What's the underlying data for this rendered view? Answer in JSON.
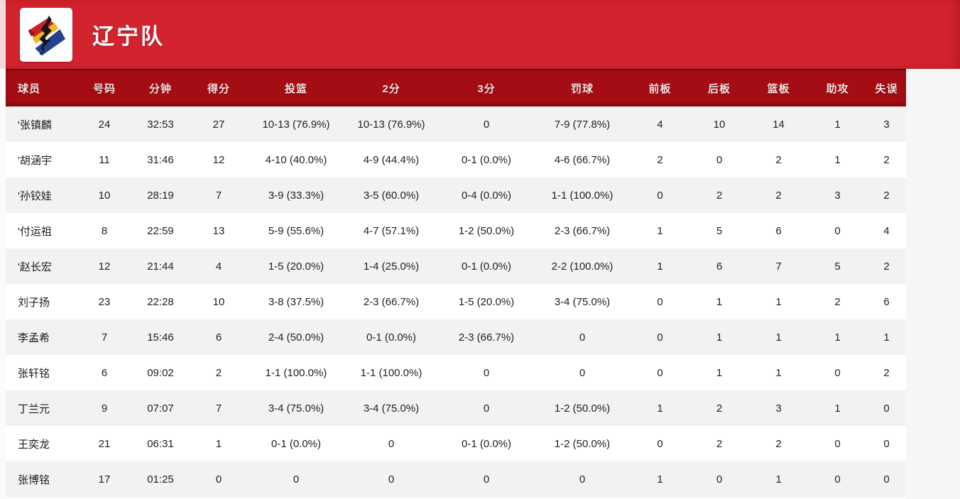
{
  "header": {
    "team_name": "辽宁队",
    "logo_name": "liaoning-flying-leopards-logo"
  },
  "colors": {
    "banner_red": "#d2232e",
    "header_bar_red": "#a50d14",
    "row_stripe": "#f2f2f2",
    "logo_red": "#cc2128",
    "logo_yellow": "#f2b722",
    "logo_blue": "#24418f",
    "logo_black": "#161616"
  },
  "table": {
    "columns": [
      "球员",
      "号码",
      "分钟",
      "得分",
      "投篮",
      "2分",
      "3分",
      "罚球",
      "前板",
      "后板",
      "篮板",
      "助攻",
      "失误"
    ],
    "starter_mark": "'",
    "rows": [
      [
        "'张镇麟",
        "24",
        "32:53",
        "27",
        "10-13 (76.9%)",
        "10-13 (76.9%)",
        "0",
        "7-9 (77.8%)",
        "4",
        "10",
        "14",
        "1",
        "3"
      ],
      [
        "'胡涵宇",
        "11",
        "31:46",
        "12",
        "4-10 (40.0%)",
        "4-9 (44.4%)",
        "0-1 (0.0%)",
        "4-6 (66.7%)",
        "2",
        "0",
        "2",
        "1",
        "2"
      ],
      [
        "'孙铰娃",
        "10",
        "28:19",
        "7",
        "3-9 (33.3%)",
        "3-5 (60.0%)",
        "0-4 (0.0%)",
        "1-1 (100.0%)",
        "0",
        "2",
        "2",
        "3",
        "2"
      ],
      [
        "'付运祖",
        "8",
        "22:59",
        "13",
        "5-9 (55.6%)",
        "4-7 (57.1%)",
        "1-2 (50.0%)",
        "2-3 (66.7%)",
        "1",
        "5",
        "6",
        "0",
        "4"
      ],
      [
        "'赵长宏",
        "12",
        "21:44",
        "4",
        "1-5 (20.0%)",
        "1-4 (25.0%)",
        "0-1 (0.0%)",
        "2-2 (100.0%)",
        "1",
        "6",
        "7",
        "5",
        "2"
      ],
      [
        "刘子扬",
        "23",
        "22:28",
        "10",
        "3-8 (37.5%)",
        "2-3 (66.7%)",
        "1-5 (20.0%)",
        "3-4 (75.0%)",
        "0",
        "1",
        "1",
        "2",
        "6"
      ],
      [
        "李孟希",
        "7",
        "15:46",
        "6",
        "2-4 (50.0%)",
        "0-1 (0.0%)",
        "2-3 (66.7%)",
        "0",
        "0",
        "1",
        "1",
        "1",
        "1"
      ],
      [
        "张轩铭",
        "6",
        "09:02",
        "2",
        "1-1 (100.0%)",
        "1-1 (100.0%)",
        "0",
        "0",
        "0",
        "1",
        "1",
        "0",
        "2"
      ],
      [
        "丁兰元",
        "9",
        "07:07",
        "7",
        "3-4 (75.0%)",
        "3-4 (75.0%)",
        "0",
        "1-2 (50.0%)",
        "1",
        "2",
        "3",
        "1",
        "0"
      ],
      [
        "王奕龙",
        "21",
        "06:31",
        "1",
        "0-1 (0.0%)",
        "0",
        "0-1 (0.0%)",
        "1-2 (50.0%)",
        "0",
        "2",
        "2",
        "0",
        "0"
      ],
      [
        "张博铭",
        "17",
        "01:25",
        "0",
        "0",
        "0",
        "0",
        "0",
        "1",
        "0",
        "1",
        "0",
        "0"
      ]
    ]
  }
}
